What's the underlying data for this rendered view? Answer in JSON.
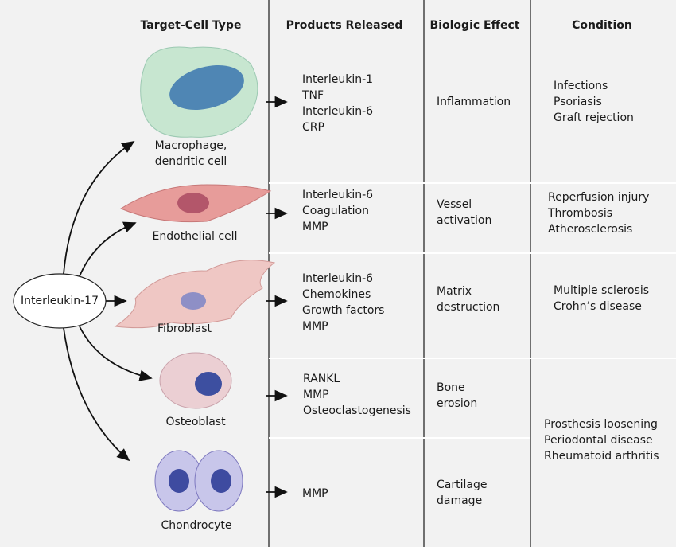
{
  "headers": [
    "Target-Cell Type",
    "Products Released",
    "Biologic Effect",
    "Condition"
  ],
  "source": "Interleukin-17",
  "rows": [
    {
      "cell": [
        "Macrophage,",
        "dendritic cell"
      ],
      "products": [
        "Interleukin-1",
        "TNF",
        "Interleukin-6",
        "CRP"
      ],
      "effect": [
        "Inflammation"
      ]
    },
    {
      "cell": [
        "Endothelial cell"
      ],
      "products": [
        "Interleukin-6",
        "Coagulation",
        "MMP"
      ],
      "effect": [
        "Vessel",
        "activation"
      ]
    },
    {
      "cell": [
        "Fibroblast"
      ],
      "products": [
        "Interleukin-6",
        "Chemokines",
        "Growth factors",
        "MMP"
      ],
      "effect": [
        "Matrix",
        "destruction"
      ]
    },
    {
      "cell": [
        "Osteoblast"
      ],
      "products": [
        "RANKL",
        "MMP",
        "Osteoclastogenesis"
      ],
      "effect": [
        "Bone",
        "erosion"
      ]
    },
    {
      "cell": [
        "Chondrocyte"
      ],
      "products": [
        "MMP"
      ],
      "effect": [
        "Cartilage",
        "damage"
      ]
    }
  ],
  "conditions": [
    [
      "Infections",
      "Psoriasis",
      "Graft rejection"
    ],
    [
      "Reperfusion injury",
      "Thrombosis",
      "Atherosclerosis"
    ],
    [
      "Multiple sclerosis",
      "Crohn’s disease"
    ],
    [
      "Prosthesis loosening",
      "Periodontal disease",
      "Rheumatoid arthritis"
    ]
  ]
}
